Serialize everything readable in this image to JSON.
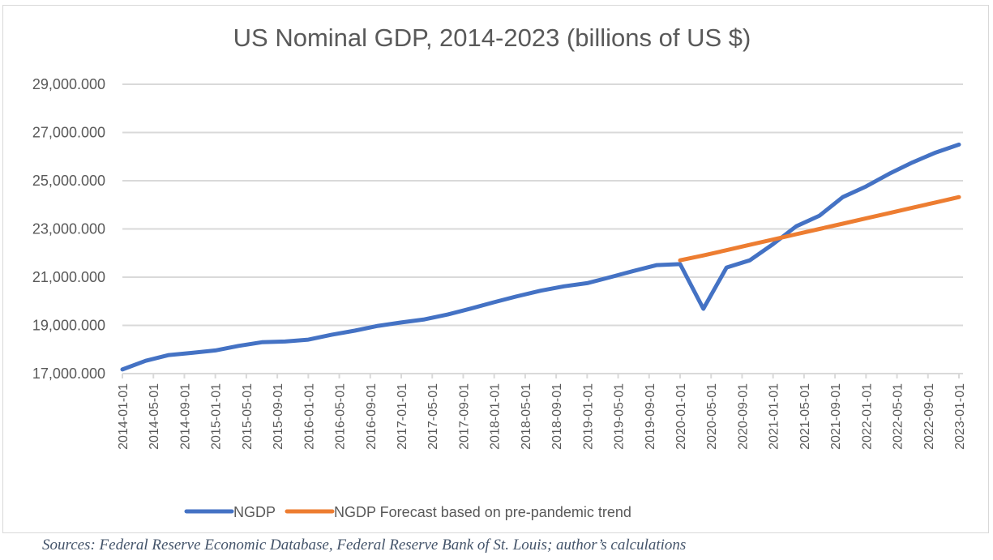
{
  "chart_data": {
    "type": "line",
    "title": "US Nominal GDP, 2014-2023 (billions of US $)",
    "xlabel": "",
    "ylabel": "",
    "ylim": [
      17000,
      29000
    ],
    "y_ticks": [
      17000,
      19000,
      21000,
      23000,
      25000,
      27000,
      29000
    ],
    "y_tick_labels": [
      "17,000.000",
      "19,000.000",
      "21,000.000",
      "23,000.000",
      "25,000.000",
      "27,000.000",
      "29,000.000"
    ],
    "x_tick_labels": [
      "2014-01-01",
      "2014-05-01",
      "2014-09-01",
      "2015-01-01",
      "2015-05-01",
      "2015-09-01",
      "2016-01-01",
      "2016-05-01",
      "2016-09-01",
      "2017-01-01",
      "2017-05-01",
      "2017-09-01",
      "2018-01-01",
      "2018-05-01",
      "2018-09-01",
      "2019-01-01",
      "2019-05-01",
      "2019-09-01",
      "2020-01-01",
      "2020-05-01",
      "2020-09-01",
      "2021-01-01",
      "2021-05-01",
      "2021-09-01",
      "2022-01-01",
      "2022-05-01",
      "2022-09-01",
      "2023-01-01"
    ],
    "grid": true,
    "legend_position": "bottom",
    "x": [
      "2014-01-01",
      "2014-04-01",
      "2014-07-01",
      "2014-10-01",
      "2015-01-01",
      "2015-04-01",
      "2015-07-01",
      "2015-10-01",
      "2016-01-01",
      "2016-04-01",
      "2016-07-01",
      "2016-10-01",
      "2017-01-01",
      "2017-04-01",
      "2017-07-01",
      "2017-10-01",
      "2018-01-01",
      "2018-04-01",
      "2018-07-01",
      "2018-10-01",
      "2019-01-01",
      "2019-04-01",
      "2019-07-01",
      "2019-10-01",
      "2020-01-01",
      "2020-04-01",
      "2020-07-01",
      "2020-10-01",
      "2021-01-01",
      "2021-04-01",
      "2021-07-01",
      "2021-10-01",
      "2022-01-01",
      "2022-04-01",
      "2022-07-01",
      "2022-10-01",
      "2023-01-01"
    ],
    "series": [
      {
        "name": "NGDP",
        "color": "#4472c4",
        "values": [
          17170,
          17530,
          17770,
          17860,
          17960,
          18150,
          18300,
          18330,
          18410,
          18610,
          18780,
          18980,
          19120,
          19250,
          19450,
          19700,
          19960,
          20210,
          20440,
          20620,
          20750,
          21000,
          21260,
          21500,
          21540,
          19690,
          21400,
          21700,
          22370,
          23110,
          23550,
          24320,
          24760,
          25290,
          25760,
          26170,
          26500
        ]
      },
      {
        "name": "NGDP Forecast based on pre-pandemic trend",
        "color": "#ed7d31",
        "values": [
          null,
          null,
          null,
          null,
          null,
          null,
          null,
          null,
          null,
          null,
          null,
          null,
          null,
          null,
          null,
          null,
          null,
          null,
          null,
          null,
          null,
          null,
          null,
          null,
          21700,
          21900,
          22120,
          22340,
          22560,
          22780,
          23000,
          23220,
          23440,
          23660,
          23880,
          24100,
          24320
        ]
      }
    ]
  },
  "source_note": "Sources: Federal Reserve Economic Database, Federal Reserve Bank of St. Louis; author’s calculations"
}
